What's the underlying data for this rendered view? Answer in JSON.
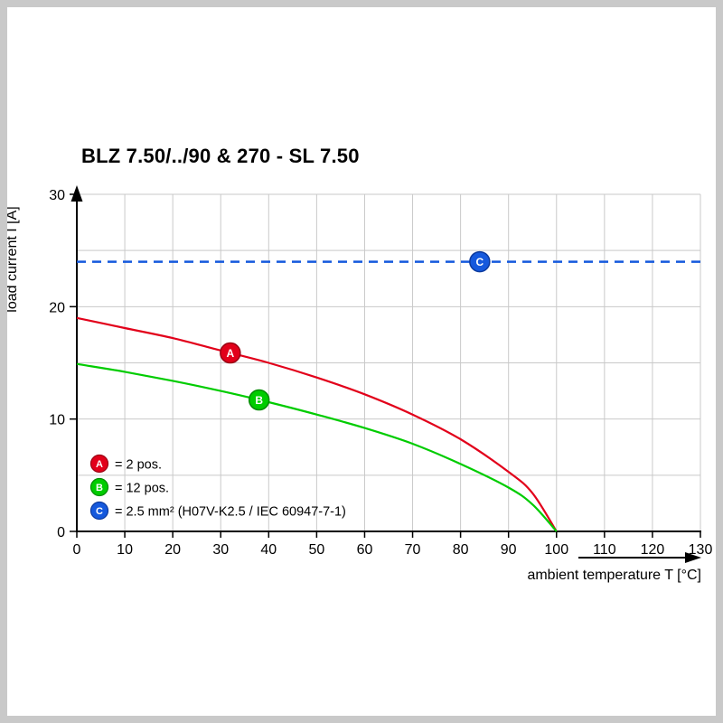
{
  "chart_data": {
    "type": "line",
    "title": "BLZ 7.50/../90 & 270 - SL 7.50",
    "xlabel": "ambient temperature T [°C]",
    "ylabel": "load current I [A]",
    "xlim": [
      0,
      130
    ],
    "ylim": [
      0,
      30
    ],
    "x_ticks": [
      0,
      10,
      20,
      30,
      40,
      50,
      60,
      70,
      80,
      90,
      100,
      110,
      120,
      130
    ],
    "y_ticks": [
      0,
      10,
      20,
      30
    ],
    "grid": {
      "x_step": 10,
      "y_step": 5,
      "color": "#c9c9c9"
    },
    "series": [
      {
        "name": "A",
        "type": "curve",
        "description": "2 pos.",
        "color": "#e2001a",
        "marker_stroke": "#9b0012",
        "points": [
          [
            0,
            19.0
          ],
          [
            10,
            18.1
          ],
          [
            20,
            17.2
          ],
          [
            30,
            16.1
          ],
          [
            40,
            15.0
          ],
          [
            50,
            13.7
          ],
          [
            60,
            12.2
          ],
          [
            70,
            10.4
          ],
          [
            80,
            8.2
          ],
          [
            90,
            5.3
          ],
          [
            95,
            3.4
          ],
          [
            100,
            0
          ]
        ],
        "marker": {
          "t": 32
        }
      },
      {
        "name": "B",
        "type": "curve",
        "description": "12 pos.",
        "color": "#00cc00",
        "marker_stroke": "#008a00",
        "points": [
          [
            0,
            14.9
          ],
          [
            10,
            14.2
          ],
          [
            20,
            13.4
          ],
          [
            30,
            12.5
          ],
          [
            40,
            11.5
          ],
          [
            50,
            10.4
          ],
          [
            60,
            9.2
          ],
          [
            70,
            7.8
          ],
          [
            80,
            6.0
          ],
          [
            90,
            3.9
          ],
          [
            95,
            2.4
          ],
          [
            100,
            0
          ]
        ],
        "marker": {
          "t": 38
        }
      },
      {
        "name": "C",
        "type": "hline",
        "description": "2.5 mm² (H07V-K2.5 / IEC 60947-7-1)",
        "color": "#1559dd",
        "marker_stroke": "#0c3a9e",
        "y": 24,
        "dashed": true,
        "marker": {
          "t": 84
        }
      }
    ],
    "legend": [
      {
        "letter": "A",
        "color": "#e2001a",
        "stroke": "#9b0012",
        "text": "= 2 pos."
      },
      {
        "letter": "B",
        "color": "#00cc00",
        "stroke": "#008a00",
        "text": "= 12 pos."
      },
      {
        "letter": "C",
        "color": "#1559dd",
        "stroke": "#0c3a9e",
        "text": "= 2.5 mm² (H07V-K2.5 / IEC 60947-7-1)"
      }
    ]
  }
}
